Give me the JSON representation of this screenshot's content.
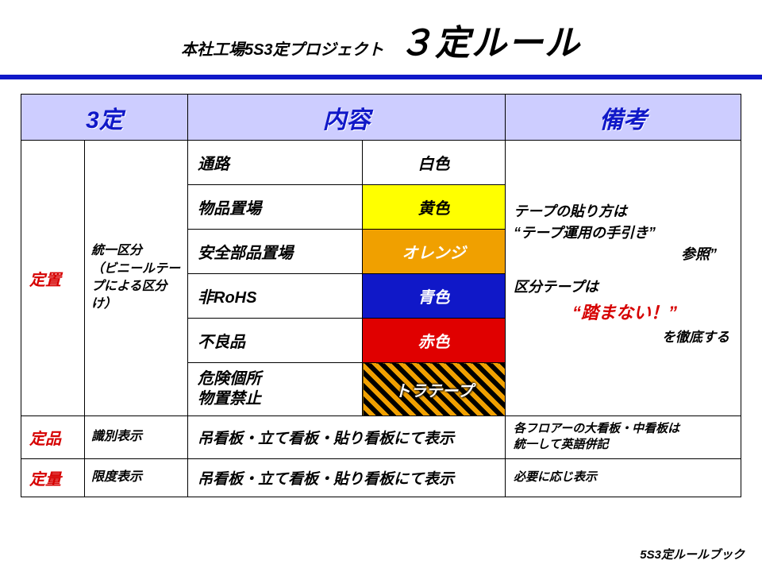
{
  "header": {
    "subtitle": "本社工場5S3定プロジェクト",
    "title": "３定ルール"
  },
  "columns": [
    "3定",
    "内容",
    "備考"
  ],
  "categories": {
    "teichi": {
      "label": "定置",
      "sub_label": "統一区分\n（ビニールテープによる区分け）",
      "rows": [
        {
          "label": "通路",
          "color_label": "白色",
          "bg": "#ffffff",
          "fg": "#000000"
        },
        {
          "label": "物品置場",
          "color_label": "黄色",
          "bg": "#ffff00",
          "fg": "#000000"
        },
        {
          "label": "安全部品置場",
          "color_label": "オレンジ",
          "bg": "#f0a000",
          "fg": "#ffffff"
        },
        {
          "label": "非RoHS",
          "color_label": "青色",
          "bg": "#1018c8",
          "fg": "#ffffff"
        },
        {
          "label": "不良品",
          "color_label": "赤色",
          "bg": "#e00000",
          "fg": "#ffffff"
        },
        {
          "label": "危険個所\n物置禁止",
          "color_label": "トラテープ",
          "bg": "tora",
          "fg": "#ffffff"
        }
      ],
      "remark_line1": "テープの貼り方は",
      "remark_line2": "“テープ運用の手引き”",
      "remark_line3": "参照”",
      "remark_line4": "区分テープは",
      "remark_emph": "“踏まない！”",
      "remark_line5": "を徹底する"
    },
    "teihin": {
      "label": "定品",
      "sub_label": "識別表示",
      "content": "吊看板・立て看板・貼り看板にて表示",
      "remark": "各フロアーの大看板・中看板は\n統一して英語併記"
    },
    "teiryo": {
      "label": "定量",
      "sub_label": "限度表示",
      "content": "吊看板・立て看板・貼り看板にて表示",
      "remark": "必要に応じ表示"
    }
  },
  "footer": "5S3定ルールブック",
  "colors": {
    "header_bg": "#cdcdff",
    "header_fg": "#1018c8",
    "accent_red": "#d60000",
    "rule_blue": "#1018c8"
  }
}
